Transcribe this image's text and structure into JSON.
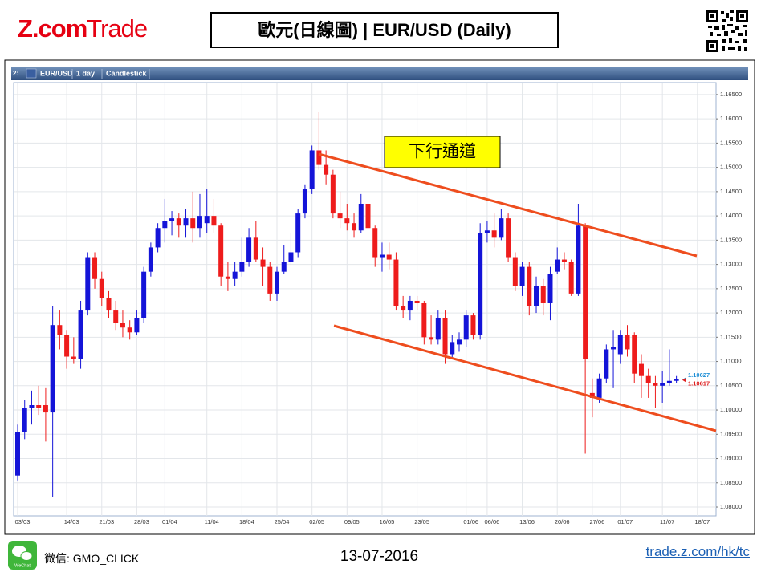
{
  "header": {
    "logo_brand": "Z.com",
    "logo_product": "Trade",
    "title": "歐元(日線圖) | EUR/USD  (Daily)"
  },
  "toolbar": {
    "index": "2:",
    "symbol": "EUR/USD",
    "interval": "1 day",
    "style": "Candlestick"
  },
  "chart_data": {
    "type": "candlestick",
    "categories": [
      "03/03",
      null,
      null,
      null,
      null,
      null,
      null,
      "14/03",
      null,
      null,
      null,
      null,
      "21/03",
      null,
      null,
      null,
      null,
      "28/03",
      null,
      null,
      null,
      "01/04",
      null,
      null,
      null,
      null,
      null,
      "11/04",
      null,
      null,
      null,
      null,
      "18/04",
      null,
      null,
      null,
      null,
      "25/04",
      null,
      null,
      null,
      null,
      "02/05",
      null,
      null,
      null,
      null,
      "09/05",
      null,
      null,
      null,
      null,
      "16/05",
      null,
      null,
      null,
      null,
      "23/05",
      null,
      null,
      null,
      null,
      null,
      null,
      "01/06",
      null,
      null,
      "06/06",
      null,
      null,
      null,
      null,
      "13/06",
      null,
      null,
      null,
      null,
      "20/06",
      null,
      null,
      null,
      null,
      "27/06",
      null,
      null,
      null,
      "01/07",
      null,
      null,
      null,
      null,
      null,
      "11/07",
      null,
      null,
      null,
      null,
      "18/07"
    ],
    "open": [
      1.0865,
      1.0955,
      1.1005,
      1.101,
      1.101,
      1.0995,
      1.1175,
      1.1155,
      1.111,
      1.1105,
      1.1205,
      1.1315,
      1.127,
      1.123,
      1.1205,
      1.118,
      1.117,
      1.116,
      1.119,
      1.1285,
      1.1335,
      1.1375,
      1.139,
      1.1395,
      1.138,
      1.1395,
      1.1375,
      1.1385,
      1.14,
      1.138,
      1.1275,
      1.127,
      1.1285,
      1.1305,
      1.1355,
      1.131,
      1.1295,
      1.124,
      1.1285,
      1.1305,
      1.1325,
      1.1405,
      1.1455,
      1.1535,
      1.1505,
      1.1485,
      1.1405,
      1.1395,
      1.1385,
      1.137,
      1.1425,
      1.1375,
      1.1315,
      1.132,
      1.131,
      1.1215,
      1.1205,
      1.1225,
      1.122,
      1.115,
      1.1145,
      1.119,
      1.1115,
      1.1135,
      1.1145,
      1.1195,
      1.1155,
      1.1365,
      1.137,
      1.1355,
      1.1395,
      1.1315,
      1.1255,
      1.1295,
      1.1215,
      1.1255,
      1.122,
      1.1285,
      1.131,
      1.1305,
      1.124,
      1.138,
      1.1035,
      1.1025,
      1.1065,
      1.1125,
      1.1115,
      1.1155,
      1.1155,
      1.1095,
      1.107,
      1.1055,
      1.105,
      1.1055,
      1.106,
      null,
      null,
      null
    ],
    "high": [
      1.097,
      1.102,
      1.104,
      1.105,
      1.1045,
      1.1215,
      1.1205,
      1.1165,
      1.115,
      1.1225,
      1.1325,
      1.1325,
      1.1285,
      1.1245,
      1.1225,
      1.1205,
      1.1185,
      1.1205,
      1.1295,
      1.1345,
      1.1385,
      1.1435,
      1.141,
      1.1405,
      1.1415,
      1.145,
      1.1445,
      1.1455,
      1.1435,
      1.1385,
      1.1305,
      1.1305,
      1.1355,
      1.1375,
      1.139,
      1.1335,
      1.1305,
      1.1295,
      1.134,
      1.1365,
      1.1415,
      1.1465,
      1.1545,
      1.1615,
      1.1535,
      1.1495,
      1.145,
      1.1425,
      1.1405,
      1.1445,
      1.1435,
      1.138,
      1.1345,
      1.1345,
      1.1325,
      1.1235,
      1.1235,
      1.1235,
      1.1225,
      1.1195,
      1.1205,
      1.1205,
      1.1155,
      1.116,
      1.1205,
      1.12,
      1.1385,
      1.139,
      1.1405,
      1.1415,
      1.1405,
      1.1325,
      1.1305,
      1.1305,
      1.1275,
      1.127,
      1.1295,
      1.1335,
      1.1325,
      1.131,
      1.1425,
      1.1385,
      1.1065,
      1.1075,
      1.1135,
      1.1165,
      1.1165,
      1.1175,
      1.116,
      1.1115,
      1.1085,
      1.107,
      1.108,
      1.1125,
      1.107,
      null,
      null,
      null
    ],
    "low": [
      1.0855,
      1.094,
      1.097,
      1.099,
      1.0935,
      1.082,
      1.1125,
      1.1085,
      1.1095,
      1.1085,
      1.1195,
      1.125,
      1.1215,
      1.119,
      1.1165,
      1.115,
      1.1145,
      1.1155,
      1.118,
      1.1275,
      1.1325,
      1.1345,
      1.136,
      1.1355,
      1.1355,
      1.1345,
      1.1355,
      1.1365,
      1.1365,
      1.1255,
      1.1245,
      1.1255,
      1.1275,
      1.1295,
      1.1305,
      1.1255,
      1.1225,
      1.1225,
      1.128,
      1.13,
      1.1315,
      1.1395,
      1.1445,
      1.1495,
      1.1465,
      1.1395,
      1.1375,
      1.137,
      1.1355,
      1.1365,
      1.1365,
      1.1295,
      1.1285,
      1.129,
      1.1205,
      1.119,
      1.1185,
      1.1205,
      1.1135,
      1.1135,
      1.1135,
      1.1095,
      1.1105,
      1.112,
      1.113,
      1.1145,
      1.1145,
      1.1345,
      1.1335,
      1.135,
      1.1305,
      1.1245,
      1.1235,
      1.1195,
      1.12,
      1.1195,
      1.1185,
      1.128,
      1.129,
      1.1235,
      1.1235,
      1.091,
      1.0985,
      1.1015,
      1.1055,
      1.1045,
      1.1095,
      1.111,
      1.1055,
      1.1025,
      1.1025,
      1.1005,
      1.1015,
      1.105,
      1.1055,
      null,
      null,
      null
    ],
    "close": [
      1.0955,
      1.1005,
      1.101,
      1.1005,
      1.0995,
      1.1175,
      1.1155,
      1.111,
      1.1105,
      1.1205,
      1.1315,
      1.127,
      1.123,
      1.1205,
      1.118,
      1.117,
      1.116,
      1.119,
      1.1285,
      1.1335,
      1.1375,
      1.139,
      1.1395,
      1.138,
      1.1395,
      1.1375,
      1.14,
      1.14,
      1.138,
      1.1275,
      1.127,
      1.1285,
      1.1305,
      1.1355,
      1.131,
      1.1295,
      1.124,
      1.1285,
      1.1305,
      1.1325,
      1.1405,
      1.1455,
      1.1535,
      1.1505,
      1.1485,
      1.1405,
      1.1395,
      1.1385,
      1.137,
      1.1425,
      1.1375,
      1.1315,
      1.132,
      1.131,
      1.1215,
      1.1205,
      1.1225,
      1.122,
      1.115,
      1.1145,
      1.119,
      1.1115,
      1.114,
      1.1145,
      1.1195,
      1.1155,
      1.1365,
      1.137,
      1.1355,
      1.1395,
      1.1315,
      1.1255,
      1.1295,
      1.1215,
      1.1255,
      1.122,
      1.128,
      1.131,
      1.1305,
      1.124,
      1.138,
      1.1105,
      1.1025,
      1.1065,
      1.1125,
      1.113,
      1.1155,
      1.1125,
      1.1075,
      1.107,
      1.1055,
      1.105,
      1.1055,
      1.106,
      1.1063,
      null,
      null,
      null
    ],
    "up_color": "#1414d8",
    "down_color": "#ee1c1c",
    "ylim": [
      1.0783,
      1.1672
    ],
    "yticks": [
      {
        "value": 1.08,
        "label": "1.08000"
      },
      {
        "value": 1.085,
        "label": "1.08500"
      },
      {
        "value": 1.09,
        "label": "1.09000"
      },
      {
        "value": 1.095,
        "label": "1.09500"
      },
      {
        "value": 1.1,
        "label": "1.10000"
      },
      {
        "value": 1.105,
        "label": "1.10500"
      },
      {
        "value": 1.11,
        "label": "1.11000"
      },
      {
        "value": 1.115,
        "label": "1.11500"
      },
      {
        "value": 1.12,
        "label": "1.12000"
      },
      {
        "value": 1.125,
        "label": "1.12500"
      },
      {
        "value": 1.13,
        "label": "1.13000"
      },
      {
        "value": 1.135,
        "label": "1.13500"
      },
      {
        "value": 1.14,
        "label": "1.14000"
      },
      {
        "value": 1.145,
        "label": "1.14500"
      },
      {
        "value": 1.15,
        "label": "1.15000"
      },
      {
        "value": 1.155,
        "label": "1.15500"
      },
      {
        "value": 1.16,
        "label": "1.16000"
      },
      {
        "value": 1.165,
        "label": "1.16500"
      }
    ],
    "grid": true,
    "last_prices": [
      {
        "value": 1.10627,
        "color": "#1f8fd6"
      },
      {
        "value": 1.10617,
        "color": "#e02020"
      }
    ],
    "annotation": "下行通道"
  },
  "footer": {
    "wechat_badge": "WeChat",
    "wechat": "微信: GMO_CLICK",
    "date": "13-07-2016",
    "link": "trade.z.com/hk/tc"
  }
}
